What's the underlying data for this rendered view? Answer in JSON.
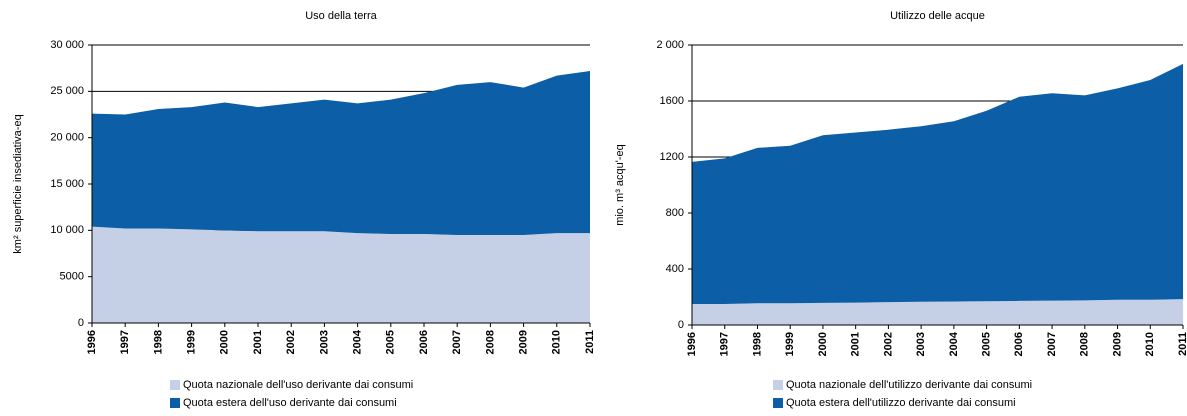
{
  "chart_data": [
    {
      "type": "area",
      "stacked": true,
      "title": "Uso della terra",
      "y_label": "km² superficie insediativa-eq",
      "categories": [
        "1996",
        "1997",
        "1998",
        "1999",
        "2000",
        "2001",
        "2002",
        "2003",
        "2004",
        "2005",
        "2006",
        "2007",
        "2008",
        "2009",
        "2010",
        "2011"
      ],
      "series": [
        {
          "name": "Quota nazionale dell'uso derivante dai consumi",
          "color": "#c5d0e6",
          "values": [
            10400,
            10200,
            10200,
            10100,
            10000,
            9900,
            9900,
            9900,
            9700,
            9600,
            9600,
            9500,
            9500,
            9500,
            9700,
            9700
          ]
        },
        {
          "name": "Quota estera dell'uso derivante dai consumi",
          "color": "#0c5ea6",
          "values": [
            12200,
            12300,
            12900,
            13200,
            13800,
            13400,
            13800,
            14200,
            14000,
            14500,
            15200,
            16200,
            16500,
            15900,
            17000,
            17500
          ]
        }
      ],
      "ylim": [
        0,
        30000
      ],
      "yticks": [
        0,
        5000,
        {
          "value": 10000,
          "label": "10 000"
        },
        {
          "value": 15000,
          "label": "15 000"
        },
        {
          "value": 20000,
          "label": "20 000"
        },
        {
          "value": 25000,
          "label": "25 000"
        },
        {
          "value": 30000,
          "label": "30 000"
        }
      ],
      "grid": true
    },
    {
      "type": "area",
      "stacked": true,
      "title": "Utilizzo delle acque",
      "y_label": "mio. m³ acqu'-eq",
      "categories": [
        "1996",
        "1997",
        "1998",
        "1999",
        "2000",
        "2001",
        "2002",
        "2003",
        "2004",
        "2005",
        "2006",
        "2007",
        "2008",
        "2009",
        "2010",
        "2011"
      ],
      "series": [
        {
          "name": "Quota nazionale dell'utilizzo derivante dai consumi",
          "color": "#c5d0e6",
          "values": [
            150,
            150,
            155,
            155,
            158,
            160,
            163,
            166,
            168,
            170,
            172,
            174,
            176,
            180,
            180,
            185
          ]
        },
        {
          "name": "Quota estera dell'utilizzo derivante dai consumi",
          "color": "#0c5ea6",
          "values": [
            1015,
            1040,
            1110,
            1125,
            1197,
            1215,
            1232,
            1254,
            1287,
            1360,
            1458,
            1481,
            1464,
            1510,
            1570,
            1680
          ]
        }
      ],
      "ylim": [
        0,
        2000
      ],
      "yticks": [
        0,
        400,
        800,
        1200,
        1600,
        {
          "value": 2000,
          "label": "2 000"
        }
      ],
      "grid": true
    }
  ]
}
